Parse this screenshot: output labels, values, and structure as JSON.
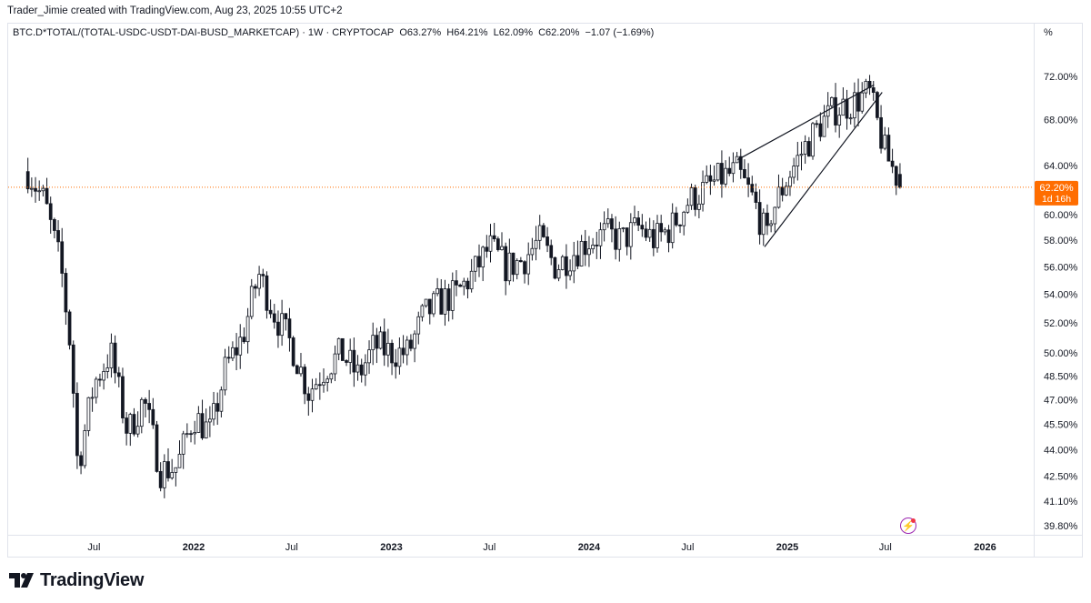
{
  "header": {
    "credit": "Trader_Jimie created with TradingView.com, Aug 23, 2025 10:55 UTC+2"
  },
  "legend": {
    "symbol": "BTC.D*TOTAL/(TOTAL-USDC-USDT-DAI-BUSD_MARKETCAP) · 1W · CRYPTOCAP",
    "open": "O63.27%",
    "high": "H64.21%",
    "low": "L62.09%",
    "close": "C62.20%",
    "change": "−1.07 (−1.69%)"
  },
  "scale_mode": "%",
  "brand": {
    "name": "TradingView"
  },
  "colors": {
    "candle": "#131722",
    "price_line": "#ff6d00",
    "badge": "#ff6d00",
    "grid_border": "#e0e3eb"
  },
  "chart_data": {
    "type": "candlestick",
    "timeframe": "1W",
    "y_scale": "log",
    "ylim": [
      39.0,
      75.0
    ],
    "y_ticks": [
      "72.00%",
      "68.00%",
      "64.00%",
      "60.00%",
      "58.00%",
      "56.00%",
      "54.00%",
      "52.00%",
      "50.00%",
      "48.50%",
      "47.00%",
      "45.50%",
      "44.00%",
      "42.50%",
      "41.10%",
      "39.80%"
    ],
    "x_ticks": [
      "Jul",
      "2022",
      "Jul",
      "2023",
      "Jul",
      "2024",
      "Jul",
      "2025",
      "Jul",
      "2026"
    ],
    "current_price": {
      "label": "62.20%",
      "countdown": "1d 16h",
      "value": 62.2
    },
    "close_path": [
      {
        "date": "2021-03",
        "value": 63.5
      },
      {
        "date": "2021-04",
        "value": 61.0
      },
      {
        "date": "2021-05",
        "value": 56.0
      },
      {
        "date": "2021-05-20",
        "value": 50.0
      },
      {
        "date": "2021-06",
        "value": 43.0
      },
      {
        "date": "2021-07",
        "value": 48.0
      },
      {
        "date": "2021-08",
        "value": 50.0
      },
      {
        "date": "2021-09",
        "value": 45.0
      },
      {
        "date": "2021-10",
        "value": 47.0
      },
      {
        "date": "2021-11",
        "value": 42.8
      },
      {
        "date": "2021-12",
        "value": 43.0
      },
      {
        "date": "2022-01",
        "value": 46.0
      },
      {
        "date": "2022-02",
        "value": 45.0
      },
      {
        "date": "2022-03",
        "value": 49.0
      },
      {
        "date": "2022-04",
        "value": 51.0
      },
      {
        "date": "2022-05",
        "value": 55.5
      },
      {
        "date": "2022-06",
        "value": 52.5
      },
      {
        "date": "2022-07",
        "value": 50.5
      },
      {
        "date": "2022-08",
        "value": 47.5
      },
      {
        "date": "2022-09",
        "value": 49.0
      },
      {
        "date": "2022-10",
        "value": 50.0
      },
      {
        "date": "2022-11",
        "value": 48.5
      },
      {
        "date": "2022-12",
        "value": 50.5
      },
      {
        "date": "2023-01",
        "value": 50.0
      },
      {
        "date": "2023-02",
        "value": 50.0
      },
      {
        "date": "2023-03",
        "value": 52.5
      },
      {
        "date": "2023-04",
        "value": 53.5
      },
      {
        "date": "2023-05",
        "value": 54.0
      },
      {
        "date": "2023-06",
        "value": 55.5
      },
      {
        "date": "2023-07",
        "value": 57.5
      },
      {
        "date": "2023-08",
        "value": 56.0
      },
      {
        "date": "2023-09",
        "value": 56.5
      },
      {
        "date": "2023-10",
        "value": 58.0
      },
      {
        "date": "2023-11",
        "value": 56.0
      },
      {
        "date": "2023-12",
        "value": 57.0
      },
      {
        "date": "2024-01",
        "value": 58.0
      },
      {
        "date": "2024-02",
        "value": 58.5
      },
      {
        "date": "2024-03",
        "value": 58.0
      },
      {
        "date": "2024-04",
        "value": 59.0
      },
      {
        "date": "2024-05",
        "value": 58.0
      },
      {
        "date": "2024-06",
        "value": 59.0
      },
      {
        "date": "2024-07",
        "value": 61.0
      },
      {
        "date": "2024-08",
        "value": 62.0
      },
      {
        "date": "2024-09",
        "value": 63.0
      },
      {
        "date": "2024-10",
        "value": 63.5
      },
      {
        "date": "2024-11",
        "value": 61.0
      },
      {
        "date": "2024-11-25",
        "value": 58.0
      },
      {
        "date": "2024-12",
        "value": 60.0
      },
      {
        "date": "2025-01",
        "value": 63.0
      },
      {
        "date": "2025-02",
        "value": 65.5
      },
      {
        "date": "2025-03",
        "value": 67.5
      },
      {
        "date": "2025-04",
        "value": 69.0
      },
      {
        "date": "2025-05",
        "value": 69.5
      },
      {
        "date": "2025-06",
        "value": 70.5
      },
      {
        "date": "2025-07",
        "value": 65.0
      },
      {
        "date": "2025-08",
        "value": 62.2
      }
    ],
    "trendlines": [
      {
        "name": "wedge-upper",
        "from": {
          "date": "2024-10",
          "value": 64.5
        },
        "to": {
          "date": "2025-06-10",
          "value": 71.2
        }
      },
      {
        "name": "wedge-lower",
        "from": {
          "date": "2024-11-20",
          "value": 57.5
        },
        "to": {
          "date": "2025-06-25",
          "value": 70.5
        }
      }
    ]
  }
}
